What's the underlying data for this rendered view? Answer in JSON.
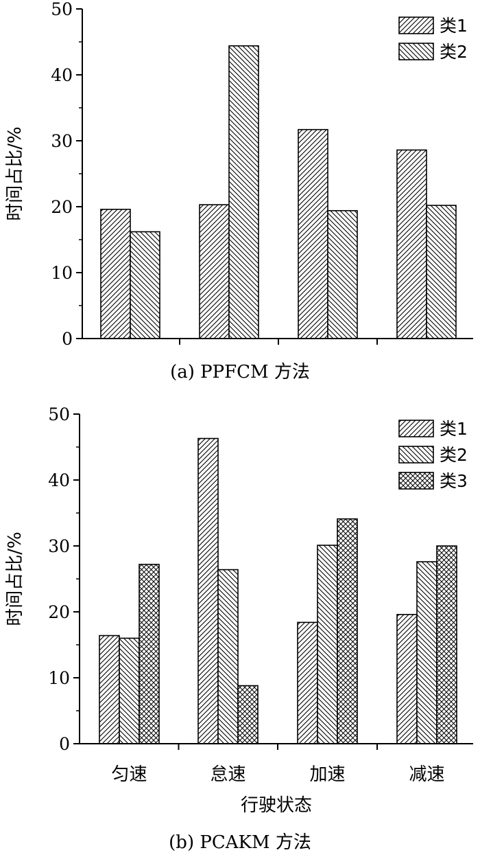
{
  "patterns": {
    "s1": "forward-hatch",
    "s2": "backward-hatch",
    "s3": "crosshatch"
  },
  "chart_data": [
    {
      "type": "bar",
      "caption": "(a) PPFCM 方法",
      "ylabel": "时间占比/%",
      "xlabel": "",
      "ylim": [
        0,
        50
      ],
      "yticks": [
        0,
        10,
        20,
        30,
        40,
        50
      ],
      "categories": [
        "",
        "",
        "",
        ""
      ],
      "legend_position": "top-right",
      "series": [
        {
          "name": "类1",
          "pattern": "s1",
          "values": [
            19.6,
            20.3,
            31.7,
            28.6
          ]
        },
        {
          "name": "类2",
          "pattern": "s2",
          "values": [
            16.2,
            44.4,
            19.4,
            20.2
          ]
        }
      ]
    },
    {
      "type": "bar",
      "caption": "(b) PCAKM 方法",
      "ylabel": "时间占比/%",
      "xlabel": "行驶状态",
      "ylim": [
        0,
        50
      ],
      "yticks": [
        0,
        10,
        20,
        30,
        40,
        50
      ],
      "categories": [
        "匀速",
        "怠速",
        "加速",
        "减速"
      ],
      "legend_position": "top-right",
      "series": [
        {
          "name": "类1",
          "pattern": "s1",
          "values": [
            16.4,
            46.3,
            18.4,
            19.6
          ]
        },
        {
          "name": "类2",
          "pattern": "s2",
          "values": [
            16.0,
            26.4,
            30.1,
            27.6
          ]
        },
        {
          "name": "类3",
          "pattern": "s3",
          "values": [
            27.2,
            8.8,
            34.1,
            30.0
          ]
        }
      ]
    }
  ]
}
